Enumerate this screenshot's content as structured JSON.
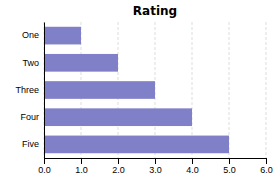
{
  "chart_data": {
    "type": "bar",
    "orientation": "horizontal",
    "title": "Rating",
    "categories": [
      "One",
      "Two",
      "Three",
      "Four",
      "Five"
    ],
    "values": [
      1,
      2,
      3,
      4,
      5
    ],
    "color": "#8080c8",
    "xlim": [
      0,
      6
    ],
    "xticks": [
      {
        "value": 0.0,
        "label": "0.0"
      },
      {
        "value": 1.0,
        "label": "1.0"
      },
      {
        "value": 2.0,
        "label": "2.0"
      },
      {
        "value": 3.0,
        "label": "3.0"
      },
      {
        "value": 4.0,
        "label": "4.0"
      },
      {
        "value": 5.0,
        "label": "5.0"
      },
      {
        "value": 6.0,
        "label": "6.0"
      }
    ],
    "grid": true
  }
}
